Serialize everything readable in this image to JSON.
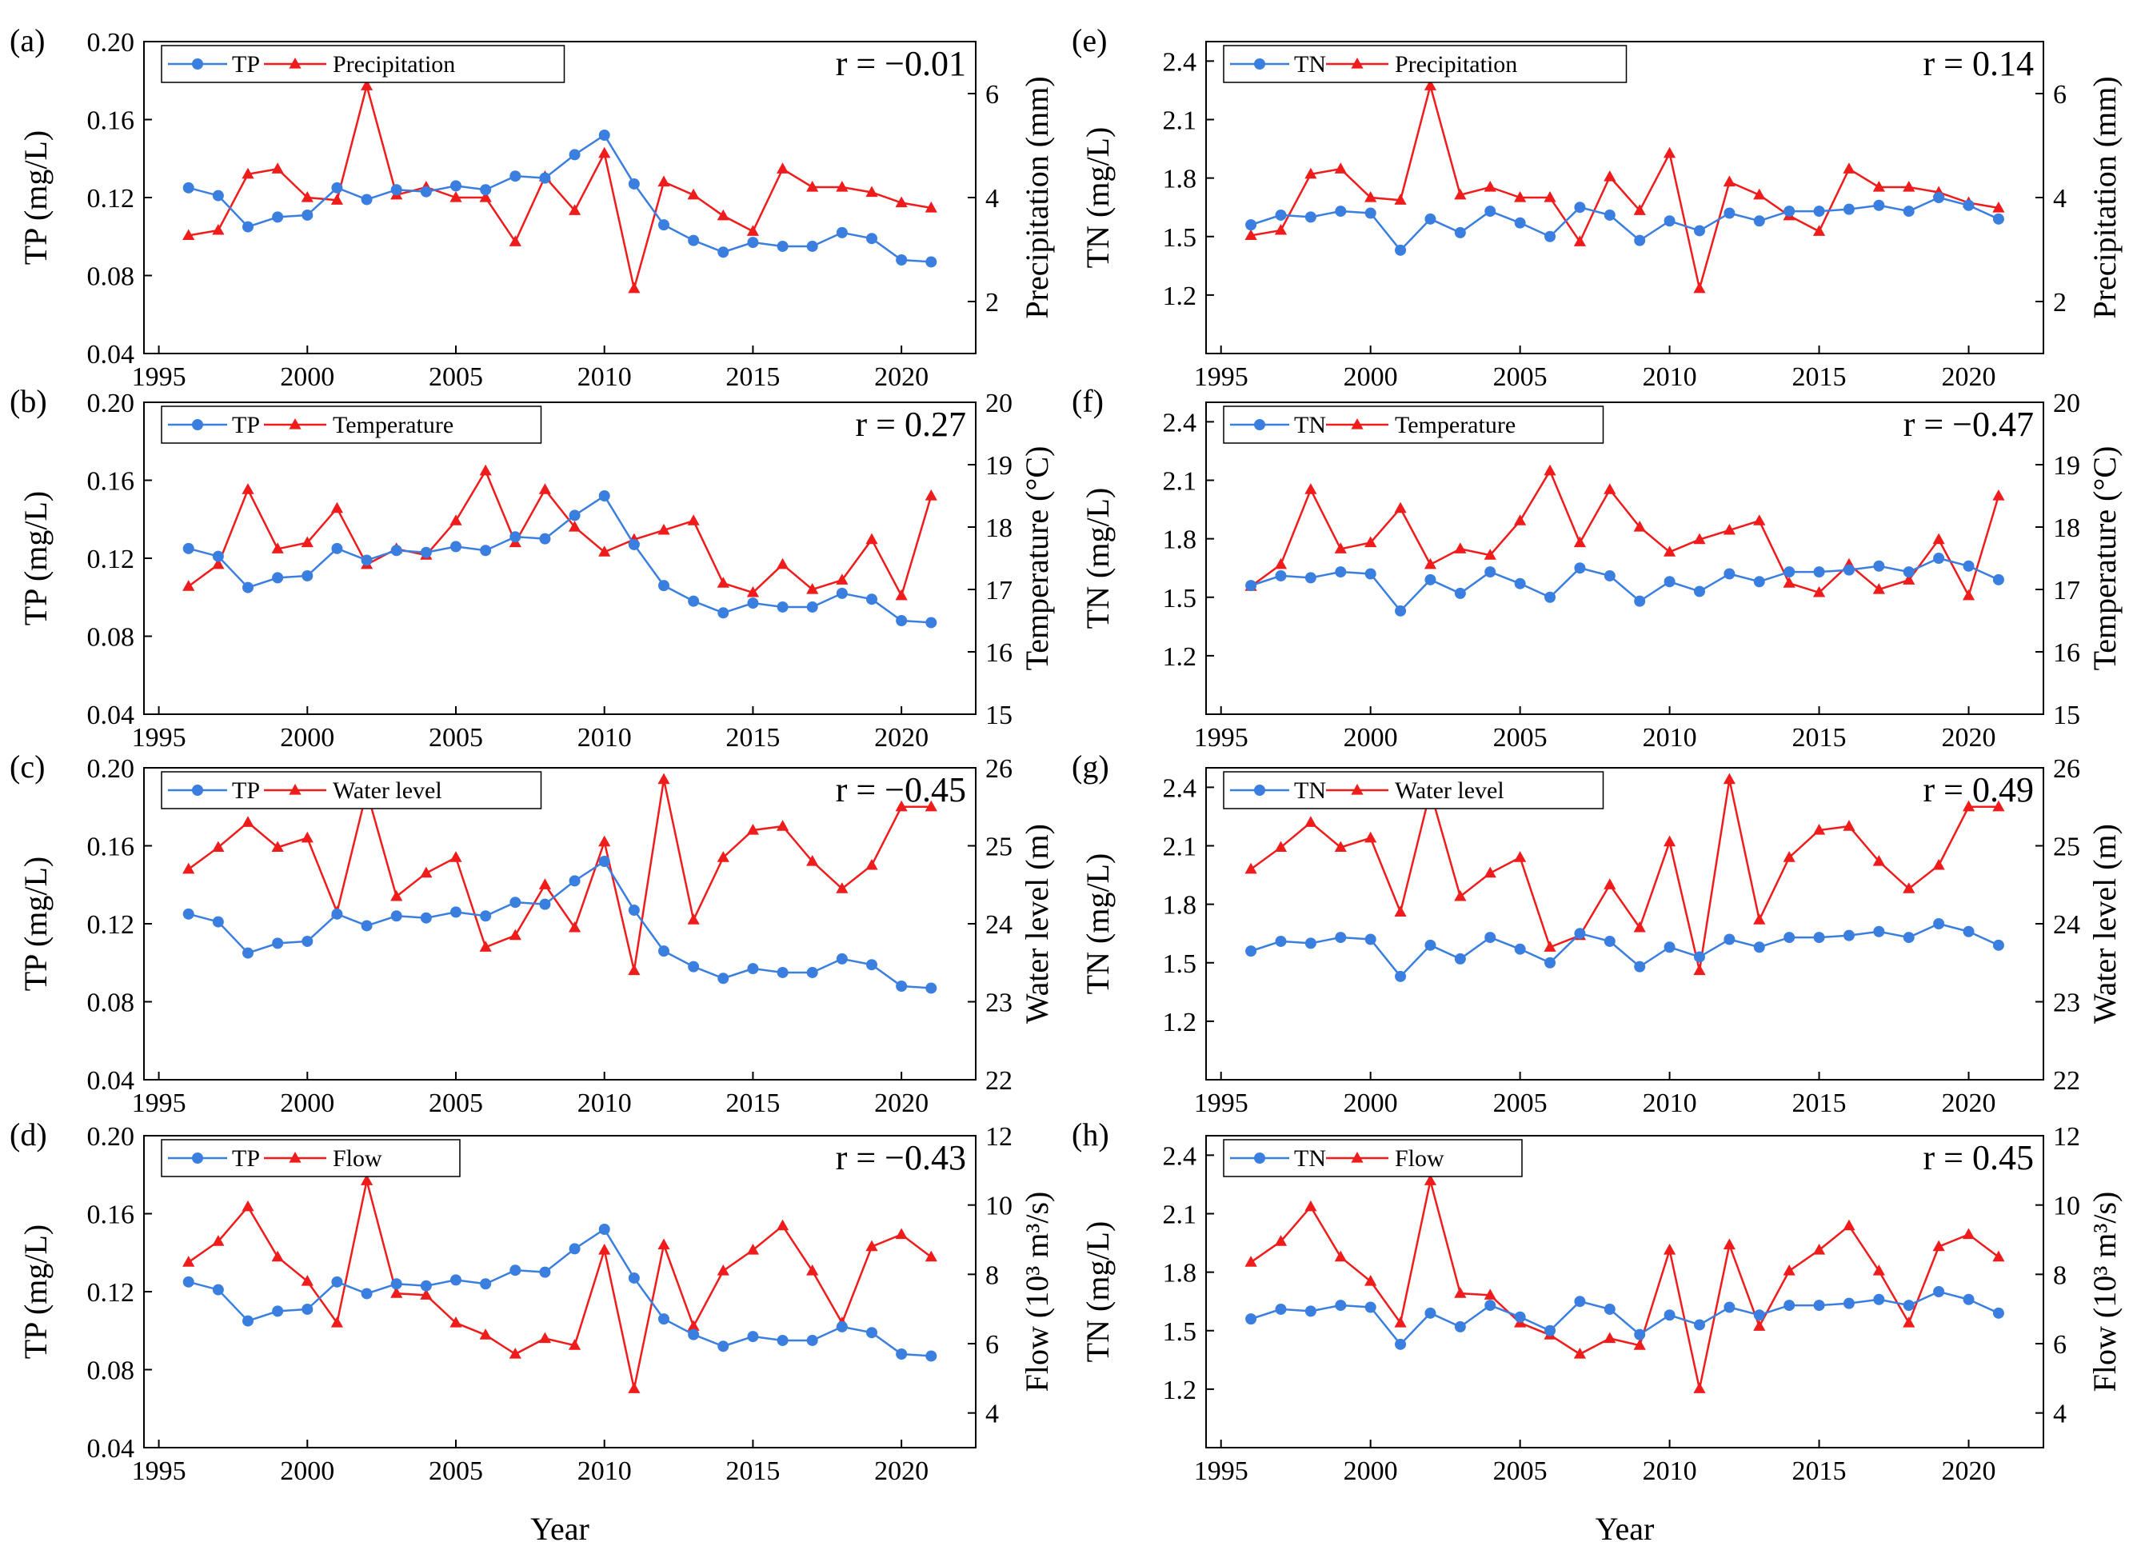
{
  "chart_data": {
    "type": "line",
    "x_label": "Year",
    "x": [
      1996,
      1997,
      1998,
      1999,
      2000,
      2001,
      2002,
      2003,
      2004,
      2005,
      2006,
      2007,
      2008,
      2009,
      2010,
      2011,
      2012,
      2013,
      2014,
      2015,
      2016,
      2017,
      2018,
      2019,
      2020,
      2021
    ],
    "x_range": [
      1994.5,
      2022.5
    ],
    "x_ticks": [
      1995,
      2000,
      2005,
      2010,
      2015,
      2020
    ],
    "colors": {
      "primary": "#3a7fe0",
      "secondary": "#f01b1b"
    },
    "panels": [
      {
        "label": "(a)",
        "r_text": "r = −0.01",
        "primary": {
          "name": "TP",
          "ylabel": "TP (mg/L)",
          "ylim": [
            0.04,
            0.2
          ],
          "ticks": [
            0.04,
            0.08,
            0.12,
            0.16,
            0.2
          ],
          "decimals": 2,
          "values": [
            0.125,
            0.121,
            0.105,
            0.11,
            0.111,
            0.125,
            0.119,
            0.124,
            0.123,
            0.126,
            0.124,
            0.131,
            0.13,
            0.142,
            0.152,
            0.127,
            0.106,
            0.098,
            0.092,
            0.097,
            0.095,
            0.095,
            0.102,
            0.099,
            0.088,
            0.087
          ]
        },
        "secondary": {
          "name": "Precipitation",
          "ylabel": "Precipitation (mm)",
          "ylim": [
            1,
            7
          ],
          "ticks": [
            2,
            4,
            6
          ],
          "decimals": 0,
          "values": [
            3.27,
            3.37,
            4.45,
            4.55,
            4.0,
            3.95,
            6.15,
            4.05,
            4.2,
            4.0,
            4.0,
            3.15,
            4.4,
            3.75,
            4.85,
            2.25,
            4.3,
            4.05,
            3.65,
            3.35,
            4.55,
            4.2,
            4.2,
            4.1,
            3.9,
            3.8
          ]
        }
      },
      {
        "label": "(b)",
        "r_text": "r = 0.27",
        "primary": {
          "name": "TP",
          "ylabel": "TP (mg/L)",
          "ylim": [
            0.04,
            0.2
          ],
          "ticks": [
            0.04,
            0.08,
            0.12,
            0.16,
            0.2
          ],
          "decimals": 2,
          "values": [
            0.125,
            0.121,
            0.105,
            0.11,
            0.111,
            0.125,
            0.119,
            0.124,
            0.123,
            0.126,
            0.124,
            0.131,
            0.13,
            0.142,
            0.152,
            0.127,
            0.106,
            0.098,
            0.092,
            0.097,
            0.095,
            0.095,
            0.102,
            0.099,
            0.088,
            0.087
          ]
        },
        "secondary": {
          "name": "Temperature",
          "ylabel": "Temperature (°C)",
          "ylim": [
            15,
            20
          ],
          "ticks": [
            15,
            16,
            17,
            18,
            19,
            20
          ],
          "decimals": 0,
          "values": [
            17.05,
            17.4,
            18.6,
            17.65,
            17.75,
            18.3,
            17.4,
            17.65,
            17.55,
            18.1,
            18.9,
            17.75,
            18.6,
            18.0,
            17.6,
            17.8,
            17.95,
            18.1,
            17.1,
            16.95,
            17.4,
            17.0,
            17.15,
            17.8,
            16.9,
            18.5
          ]
        }
      },
      {
        "label": "(c)",
        "r_text": "r = −0.45",
        "primary": {
          "name": "TP",
          "ylabel": "TP (mg/L)",
          "ylim": [
            0.04,
            0.2
          ],
          "ticks": [
            0.04,
            0.08,
            0.12,
            0.16,
            0.2
          ],
          "decimals": 2,
          "values": [
            0.125,
            0.121,
            0.105,
            0.11,
            0.111,
            0.125,
            0.119,
            0.124,
            0.123,
            0.126,
            0.124,
            0.131,
            0.13,
            0.142,
            0.152,
            0.127,
            0.106,
            0.098,
            0.092,
            0.097,
            0.095,
            0.095,
            0.102,
            0.099,
            0.088,
            0.087
          ]
        },
        "secondary": {
          "name": "Water level",
          "ylabel": "Water level (m)",
          "ylim": [
            22,
            26
          ],
          "ticks": [
            22,
            23,
            24,
            25,
            26
          ],
          "decimals": 0,
          "values": [
            24.7,
            24.98,
            25.3,
            24.98,
            25.1,
            24.15,
            25.7,
            24.35,
            24.65,
            24.85,
            23.7,
            23.85,
            24.5,
            23.95,
            25.05,
            23.4,
            25.85,
            24.05,
            24.85,
            25.2,
            25.25,
            24.8,
            24.45,
            24.75,
            25.5,
            25.5
          ]
        }
      },
      {
        "label": "(d)",
        "r_text": "r = −0.43",
        "primary": {
          "name": "TP",
          "ylabel": "TP (mg/L)",
          "ylim": [
            0.04,
            0.2
          ],
          "ticks": [
            0.04,
            0.08,
            0.12,
            0.16,
            0.2
          ],
          "decimals": 2,
          "values": [
            0.125,
            0.121,
            0.105,
            0.11,
            0.111,
            0.125,
            0.119,
            0.124,
            0.123,
            0.126,
            0.124,
            0.131,
            0.13,
            0.142,
            0.152,
            0.127,
            0.106,
            0.098,
            0.092,
            0.097,
            0.095,
            0.095,
            0.102,
            0.099,
            0.088,
            0.087
          ]
        },
        "secondary": {
          "name": "Flow",
          "ylabel": "Flow (10³ m³/s)",
          "ylim": [
            3,
            12
          ],
          "ticks": [
            4,
            6,
            8,
            10,
            12
          ],
          "decimals": 0,
          "values": [
            8.35,
            8.95,
            9.95,
            8.5,
            7.8,
            6.6,
            10.7,
            7.45,
            7.4,
            6.6,
            6.25,
            5.7,
            6.15,
            5.95,
            8.7,
            4.7,
            8.85,
            6.5,
            8.1,
            8.7,
            9.4,
            8.1,
            6.6,
            8.8,
            9.15,
            8.5
          ]
        }
      },
      {
        "label": "(e)",
        "r_text": "r = 0.14",
        "primary": {
          "name": "TN",
          "ylabel": "TN (mg/L)",
          "ylim": [
            0.9,
            2.5
          ],
          "ticks": [
            1.2,
            1.5,
            1.8,
            2.1,
            2.4
          ],
          "decimals": 1,
          "values": [
            1.56,
            1.61,
            1.6,
            1.63,
            1.62,
            1.43,
            1.59,
            1.52,
            1.63,
            1.57,
            1.5,
            1.65,
            1.61,
            1.48,
            1.58,
            1.53,
            1.62,
            1.58,
            1.63,
            1.63,
            1.64,
            1.66,
            1.63,
            1.7,
            1.66,
            1.59
          ]
        },
        "secondary": {
          "name": "Precipitation",
          "ylabel": "Precipitation (mm)",
          "ylim": [
            1,
            7
          ],
          "ticks": [
            2,
            4,
            6
          ],
          "decimals": 0,
          "values": [
            3.27,
            3.37,
            4.45,
            4.55,
            4.0,
            3.95,
            6.15,
            4.05,
            4.2,
            4.0,
            4.0,
            3.15,
            4.4,
            3.75,
            4.85,
            2.25,
            4.3,
            4.05,
            3.65,
            3.35,
            4.55,
            4.2,
            4.2,
            4.1,
            3.9,
            3.8
          ]
        }
      },
      {
        "label": "(f)",
        "r_text": "r = −0.47",
        "primary": {
          "name": "TN",
          "ylabel": "TN (mg/L)",
          "ylim": [
            0.9,
            2.5
          ],
          "ticks": [
            1.2,
            1.5,
            1.8,
            2.1,
            2.4
          ],
          "decimals": 1,
          "values": [
            1.56,
            1.61,
            1.6,
            1.63,
            1.62,
            1.43,
            1.59,
            1.52,
            1.63,
            1.57,
            1.5,
            1.65,
            1.61,
            1.48,
            1.58,
            1.53,
            1.62,
            1.58,
            1.63,
            1.63,
            1.64,
            1.66,
            1.63,
            1.7,
            1.66,
            1.59
          ]
        },
        "secondary": {
          "name": "Temperature",
          "ylabel": "Temperature (°C)",
          "ylim": [
            15,
            20
          ],
          "ticks": [
            15,
            16,
            17,
            18,
            19,
            20
          ],
          "decimals": 0,
          "values": [
            17.05,
            17.4,
            18.6,
            17.65,
            17.75,
            18.3,
            17.4,
            17.65,
            17.55,
            18.1,
            18.9,
            17.75,
            18.6,
            18.0,
            17.6,
            17.8,
            17.95,
            18.1,
            17.1,
            16.95,
            17.4,
            17.0,
            17.15,
            17.8,
            16.9,
            18.5
          ]
        }
      },
      {
        "label": "(g)",
        "r_text": "r = 0.49",
        "primary": {
          "name": "TN",
          "ylabel": "TN (mg/L)",
          "ylim": [
            0.9,
            2.5
          ],
          "ticks": [
            1.2,
            1.5,
            1.8,
            2.1,
            2.4
          ],
          "decimals": 1,
          "values": [
            1.56,
            1.61,
            1.6,
            1.63,
            1.62,
            1.43,
            1.59,
            1.52,
            1.63,
            1.57,
            1.5,
            1.65,
            1.61,
            1.48,
            1.58,
            1.53,
            1.62,
            1.58,
            1.63,
            1.63,
            1.64,
            1.66,
            1.63,
            1.7,
            1.66,
            1.59
          ]
        },
        "secondary": {
          "name": "Water level",
          "ylabel": "Water level (m)",
          "ylim": [
            22,
            26
          ],
          "ticks": [
            22,
            23,
            24,
            25,
            26
          ],
          "decimals": 0,
          "values": [
            24.7,
            24.98,
            25.3,
            24.98,
            25.1,
            24.15,
            25.7,
            24.35,
            24.65,
            24.85,
            23.7,
            23.85,
            24.5,
            23.95,
            25.05,
            23.4,
            25.85,
            24.05,
            24.85,
            25.2,
            25.25,
            24.8,
            24.45,
            24.75,
            25.5,
            25.5
          ]
        }
      },
      {
        "label": "(h)",
        "r_text": "r = 0.45",
        "primary": {
          "name": "TN",
          "ylabel": "TN (mg/L)",
          "ylim": [
            0.9,
            2.5
          ],
          "ticks": [
            1.2,
            1.5,
            1.8,
            2.1,
            2.4
          ],
          "decimals": 1,
          "values": [
            1.56,
            1.61,
            1.6,
            1.63,
            1.62,
            1.43,
            1.59,
            1.52,
            1.63,
            1.57,
            1.5,
            1.65,
            1.61,
            1.48,
            1.58,
            1.53,
            1.62,
            1.58,
            1.63,
            1.63,
            1.64,
            1.66,
            1.63,
            1.7,
            1.66,
            1.59
          ]
        },
        "secondary": {
          "name": "Flow",
          "ylabel": "Flow (10³ m³/s)",
          "ylim": [
            3,
            12
          ],
          "ticks": [
            4,
            6,
            8,
            10,
            12
          ],
          "decimals": 0,
          "values": [
            8.35,
            8.95,
            9.95,
            8.5,
            7.8,
            6.6,
            10.7,
            7.45,
            7.4,
            6.6,
            6.25,
            5.7,
            6.15,
            5.95,
            8.7,
            4.7,
            8.85,
            6.5,
            8.1,
            8.7,
            9.4,
            8.1,
            6.6,
            8.8,
            9.15,
            8.5
          ]
        }
      }
    ]
  }
}
